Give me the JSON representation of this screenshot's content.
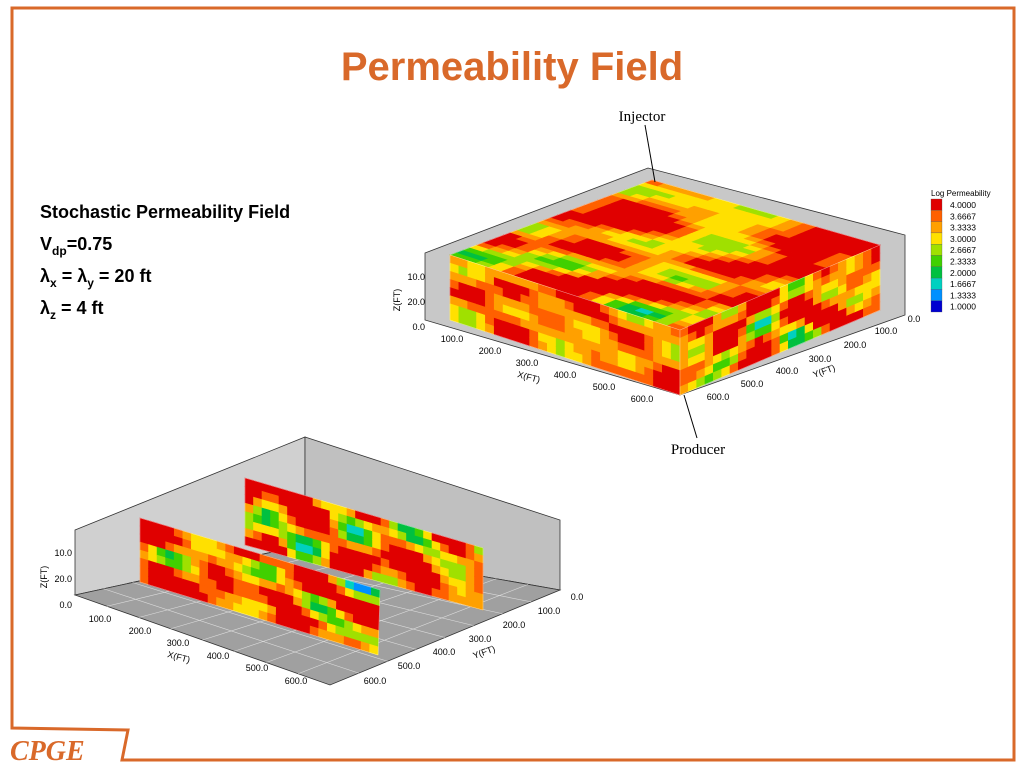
{
  "title": "Permeability Field",
  "description": [
    [
      {
        "t": "Stochastic Permeability Field",
        "sub": false
      }
    ],
    [
      {
        "t": "V",
        "sub": false
      },
      {
        "t": "dp",
        "sub": true
      },
      {
        "t": "=0.75",
        "sub": false
      }
    ],
    [
      {
        "t": "λ",
        "sub": false
      },
      {
        "t": "x",
        "sub": true
      },
      {
        "t": " = λ",
        "sub": false
      },
      {
        "t": "y",
        "sub": true
      },
      {
        "t": " = 20 ft",
        "sub": false
      }
    ],
    [
      {
        "t": "λ",
        "sub": false
      },
      {
        "t": "z",
        "sub": true
      },
      {
        "t": " = 4 ft",
        "sub": false
      }
    ]
  ],
  "injector_label": "Injector",
  "producer_label": "Producer",
  "legend": {
    "title": "Log Permeability",
    "entries": [
      {
        "label": "4.0000",
        "color": "#e00000"
      },
      {
        "label": "3.6667",
        "color": "#ff6000"
      },
      {
        "label": "3.3333",
        "color": "#ffa000"
      },
      {
        "label": "3.0000",
        "color": "#ffe000"
      },
      {
        "label": "2.6667",
        "color": "#a0e000"
      },
      {
        "label": "2.3333",
        "color": "#40d000"
      },
      {
        "label": "2.0000",
        "color": "#00c040"
      },
      {
        "label": "1.6667",
        "color": "#00d0c0"
      },
      {
        "label": "1.3333",
        "color": "#0090ff"
      },
      {
        "label": "1.0000",
        "color": "#0000d0"
      }
    ]
  },
  "plots": [
    {
      "z_label": "Z(FT)",
      "x_label": "X(FT)",
      "y_label": "Y(FT)",
      "z_ticks": [
        "10.0",
        "20.0",
        "0.0"
      ],
      "x_ticks": [
        "100.0",
        "200.0",
        "300.0",
        "400.0",
        "500.0",
        "600.0"
      ],
      "y_ticks": [
        "0.0",
        "100.0",
        "200.0",
        "300.0",
        "400.0",
        "500.0",
        "600.0"
      ]
    },
    {
      "z_label": "Z(FT)",
      "x_label": "X(FT)",
      "y_label": "Y(FT)",
      "z_ticks": [
        "10.0",
        "20.0",
        "0.0"
      ],
      "x_ticks": [
        "100.0",
        "200.0",
        "300.0",
        "400.0",
        "500.0",
        "600.0"
      ],
      "y_ticks": [
        "0.0",
        "100.0",
        "200.0",
        "300.0",
        "400.0",
        "500.0",
        "600.0"
      ]
    }
  ],
  "footer": "CPGE"
}
